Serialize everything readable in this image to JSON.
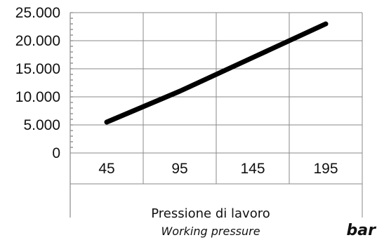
{
  "chart_data": {
    "type": "line",
    "categories": [
      "45",
      "95",
      "145",
      "195"
    ],
    "y_tick_labels": [
      "0",
      "5.000",
      "10.000",
      "15.000",
      "20.000",
      "25.000"
    ],
    "series": [
      {
        "values": [
          5500,
          11000,
          17000,
          23000
        ],
        "color": "#000000"
      }
    ],
    "ylim": [
      0,
      25000
    ],
    "xlabel": "Pressione di lavoro",
    "xlabel_secondary": "Working pressure",
    "unit_label": "bar",
    "grid": true
  }
}
